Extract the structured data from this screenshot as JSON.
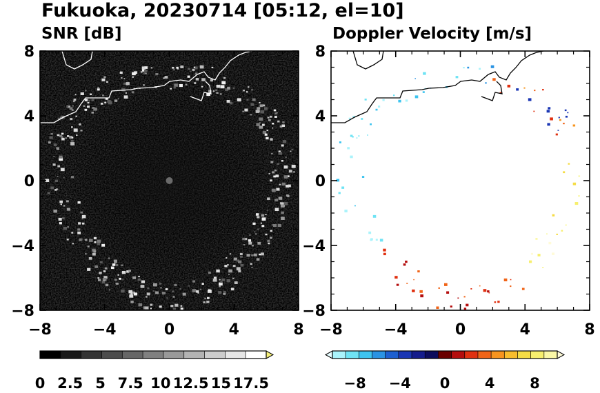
{
  "title": "Fukuoka, 20230714 [05:12, el=10]",
  "chart_data": [
    {
      "type": "heatmap",
      "title": "SNR [dB]",
      "xlabel": "",
      "ylabel": "",
      "xlim": [
        -8,
        8
      ],
      "ylim": [
        -8,
        8
      ],
      "x_ticks": [
        "-8",
        "-4",
        "0",
        "4",
        "8"
      ],
      "y_ticks": [
        "8",
        "4",
        "0",
        "-4",
        "-8"
      ],
      "colorbar": {
        "range": [
          0,
          18.75
        ],
        "tick_labels": [
          "0",
          "2.5",
          "5",
          "7.5",
          "10",
          "12.5",
          "15",
          "17.5"
        ],
        "extend": "max",
        "colors": [
          "#000000",
          "#191919",
          "#333333",
          "#4c4c4c",
          "#666666",
          "#808080",
          "#999999",
          "#b3b3b3",
          "#cccccc",
          "#e6e6e6",
          "#ffffff",
          "#f5f07a"
        ]
      }
    },
    {
      "type": "heatmap",
      "title": "Doppler Velocity [m/s]",
      "xlabel": "",
      "ylabel": "",
      "xlim": [
        -8,
        8
      ],
      "ylim": [
        -8,
        8
      ],
      "x_ticks": [
        "-8",
        "-4",
        "0",
        "4",
        "8"
      ],
      "y_ticks": [
        "8",
        "4",
        "0",
        "-4",
        "-8"
      ],
      "colorbar": {
        "range": [
          -10,
          10
        ],
        "tick_labels": [
          "−8",
          "−4",
          "0",
          "4",
          "8"
        ],
        "extend": "both",
        "colors": [
          "#e8fdff",
          "#aaf3fb",
          "#6fe3f4",
          "#3ec4ef",
          "#2a93e3",
          "#1c5fd0",
          "#1a36b4",
          "#141c8c",
          "#0c0c5c",
          "#6a0000",
          "#b40d0d",
          "#e03010",
          "#f06418",
          "#f7941f",
          "#f8bd2d",
          "#f5dc45",
          "#f7ef6e",
          "#fbf8a6",
          "#fffbd8"
        ]
      }
    }
  ]
}
